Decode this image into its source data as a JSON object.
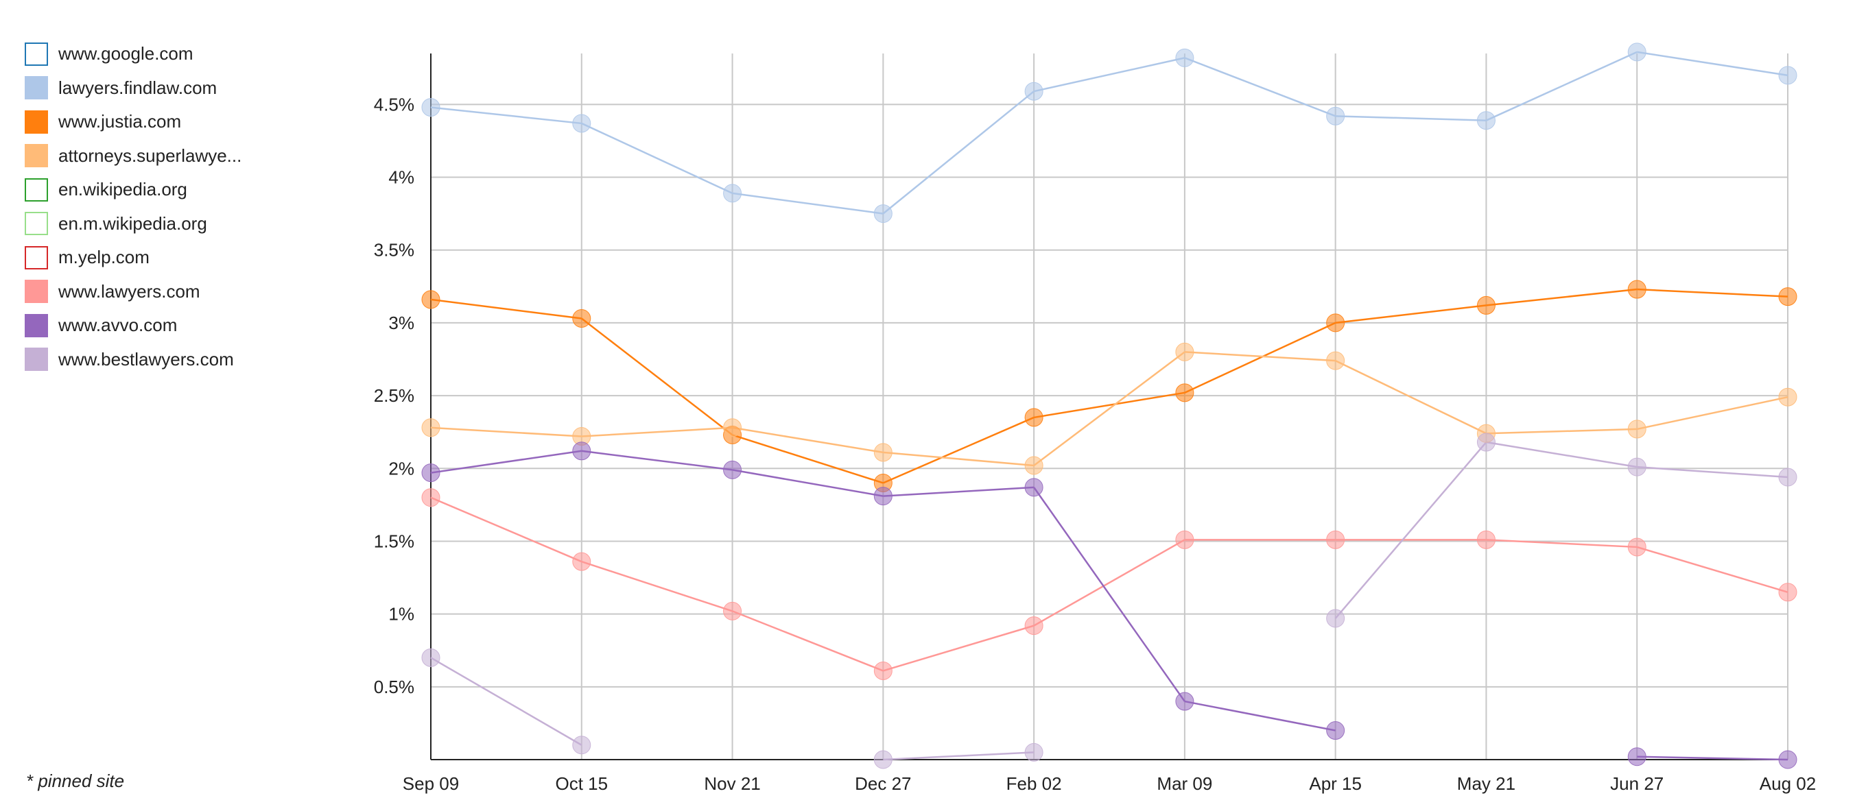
{
  "legend": {
    "items": [
      {
        "label": "www.google.com",
        "color": "#1f77b4",
        "style": "outline"
      },
      {
        "label": "lawyers.findlaw.com",
        "color": "#aec7e8",
        "style": "filled"
      },
      {
        "label": "www.justia.com",
        "color": "#ff7f0e",
        "style": "filled"
      },
      {
        "label": "attorneys.superlawye...",
        "color": "#ffbb78",
        "style": "filled"
      },
      {
        "label": "en.wikipedia.org",
        "color": "#2ca02c",
        "style": "outline"
      },
      {
        "label": "en.m.wikipedia.org",
        "color": "#98df8a",
        "style": "outline"
      },
      {
        "label": "m.yelp.com",
        "color": "#d62728",
        "style": "outline"
      },
      {
        "label": "www.lawyers.com",
        "color": "#ff9896",
        "style": "filled"
      },
      {
        "label": "www.avvo.com",
        "color": "#9467bd",
        "style": "filled"
      },
      {
        "label": "www.bestlawyers.com",
        "color": "#c5b0d5",
        "style": "filled"
      }
    ]
  },
  "footnote": "* pinned site",
  "chart_data": {
    "type": "line",
    "categories": [
      "Sep 09",
      "Oct 15",
      "Nov 21",
      "Dec 27",
      "Feb 02",
      "Mar 09",
      "Apr 15",
      "May 21",
      "Jun 27",
      "Aug 02"
    ],
    "y_ticks": [
      0.5,
      1,
      1.5,
      2,
      2.5,
      3,
      3.5,
      4,
      4.5
    ],
    "y_tick_labels": [
      "0.5%",
      "1%",
      "1.5%",
      "2%",
      "2.5%",
      "3%",
      "3.5%",
      "4%",
      "4.5%"
    ],
    "ylim": [
      0,
      4.85
    ],
    "grid": true,
    "legend_position": "left",
    "series": [
      {
        "name": "lawyers.findlaw.com",
        "color": "#aec7e8",
        "values": [
          4.48,
          4.37,
          3.89,
          3.75,
          4.59,
          4.82,
          4.42,
          4.39,
          4.86,
          4.7
        ]
      },
      {
        "name": "www.justia.com",
        "color": "#ff7f0e",
        "values": [
          3.16,
          3.03,
          2.23,
          1.9,
          2.35,
          2.52,
          3.0,
          3.12,
          3.23,
          3.18
        ]
      },
      {
        "name": "attorneys.superlawye...",
        "color": "#ffbb78",
        "values": [
          2.28,
          2.22,
          2.28,
          2.11,
          2.02,
          2.8,
          2.74,
          2.24,
          2.27,
          2.49
        ]
      },
      {
        "name": "www.lawyers.com",
        "color": "#ff9896",
        "values": [
          1.8,
          1.36,
          1.02,
          0.61,
          0.92,
          1.51,
          1.51,
          1.51,
          1.46,
          1.15
        ]
      },
      {
        "name": "www.avvo.com",
        "color": "#9467bd",
        "values": [
          1.97,
          2.12,
          1.99,
          1.81,
          1.87,
          0.4,
          0.2,
          null,
          0.02,
          0.0
        ]
      },
      {
        "name": "www.bestlawyers.com",
        "color": "#c5b0d5",
        "values": [
          0.7,
          0.1,
          null,
          0.0,
          0.05,
          null,
          0.97,
          2.18,
          2.01,
          1.94
        ]
      }
    ]
  }
}
